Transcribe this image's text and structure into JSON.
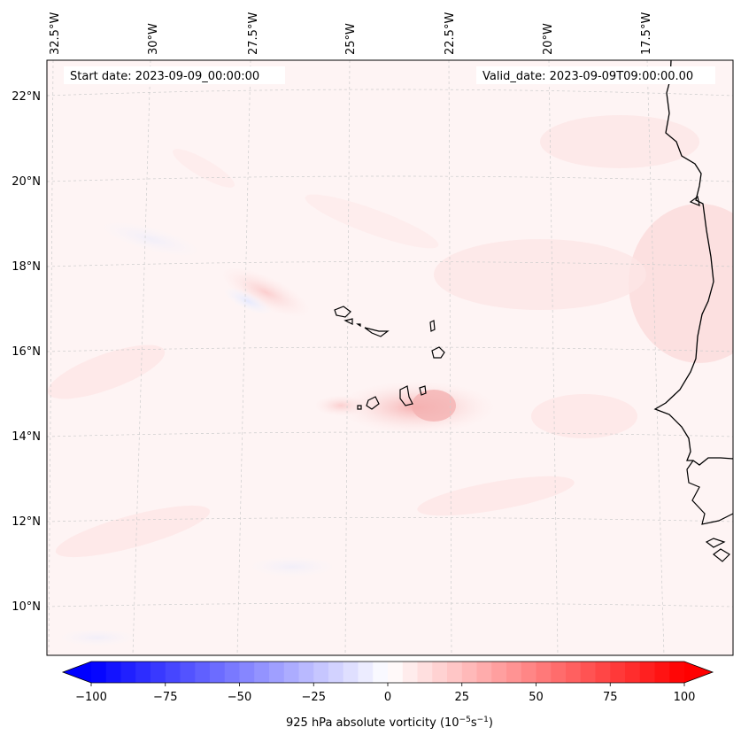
{
  "header": {
    "start_date": "Start date: 2023-09-09_00:00:00",
    "valid_date": "Valid_date: 2023-09-09T09:00:00.00"
  },
  "map": {
    "lon_labels": [
      "32.5°W",
      "30°W",
      "27.5°W",
      "25°W",
      "22.5°W",
      "20°W",
      "17.5°W"
    ],
    "lat_labels": [
      "22°N",
      "20°N",
      "18°N",
      "16°N",
      "14°N",
      "12°N",
      "10°N"
    ],
    "features": [
      "cape-verde-islands",
      "west-africa-coastline",
      "vorticity-field"
    ]
  },
  "colorbar": {
    "label": "925 hPa absolute vorticity (10",
    "label_exp1": "−5",
    "label_mid": "s",
    "label_exp2": "−1",
    "label_end": ")",
    "tick_labels": [
      "−100",
      "−75",
      "−50",
      "−25",
      "0",
      "25",
      "50",
      "75",
      "100"
    ],
    "min": -100,
    "max": 100,
    "step": 5,
    "colors": {
      "negative": "#0000ff",
      "neutral": "#ffffff",
      "positive": "#ff0000"
    }
  }
}
